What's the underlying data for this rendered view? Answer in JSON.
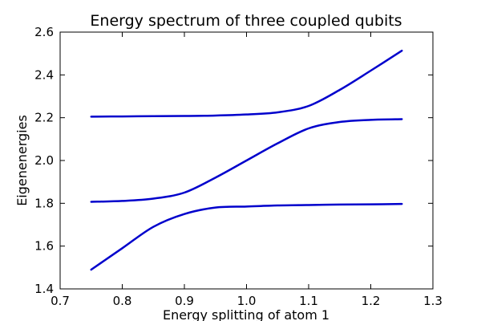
{
  "chart_data": {
    "type": "line",
    "title": "Energy spectrum of three coupled qubits",
    "xlabel": "Energy splitting of atom 1",
    "ylabel": "Eigenenergies",
    "xlim": [
      0.7,
      1.3
    ],
    "ylim": [
      1.4,
      2.6
    ],
    "xticks": [
      0.7,
      0.8,
      0.9,
      1.0,
      1.1,
      1.2,
      1.3
    ],
    "yticks": [
      1.4,
      1.6,
      1.8,
      2.0,
      2.2,
      2.4,
      2.6
    ],
    "xtick_labels": [
      "0.7",
      "0.8",
      "0.9",
      "1.0",
      "1.1",
      "1.2",
      "1.3"
    ],
    "ytick_labels": [
      "1.4",
      "1.6",
      "1.8",
      "2.0",
      "2.2",
      "2.4",
      "2.6"
    ],
    "grid": false,
    "line_color": "#0000cc",
    "series": [
      {
        "x": [
          0.75,
          0.8,
          0.85,
          0.9,
          0.95,
          1.0,
          1.05,
          1.1,
          1.15,
          1.2,
          1.25
        ],
        "values": [
          1.49,
          1.59,
          1.69,
          1.75,
          1.78,
          1.785,
          1.79,
          1.792,
          1.794,
          1.795,
          1.797
        ]
      },
      {
        "x": [
          0.75,
          0.8,
          0.85,
          0.9,
          0.95,
          1.0,
          1.05,
          1.1,
          1.15,
          1.2,
          1.25
        ],
        "values": [
          1.807,
          1.811,
          1.822,
          1.85,
          1.92,
          2.0,
          2.08,
          2.15,
          2.18,
          2.19,
          2.193
        ]
      },
      {
        "x": [
          0.75,
          0.8,
          0.85,
          0.9,
          0.95,
          1.0,
          1.05,
          1.1,
          1.15,
          1.2,
          1.25
        ],
        "values": [
          2.205,
          2.206,
          2.207,
          2.208,
          2.21,
          2.215,
          2.225,
          2.255,
          2.33,
          2.42,
          2.513
        ]
      }
    ]
  }
}
